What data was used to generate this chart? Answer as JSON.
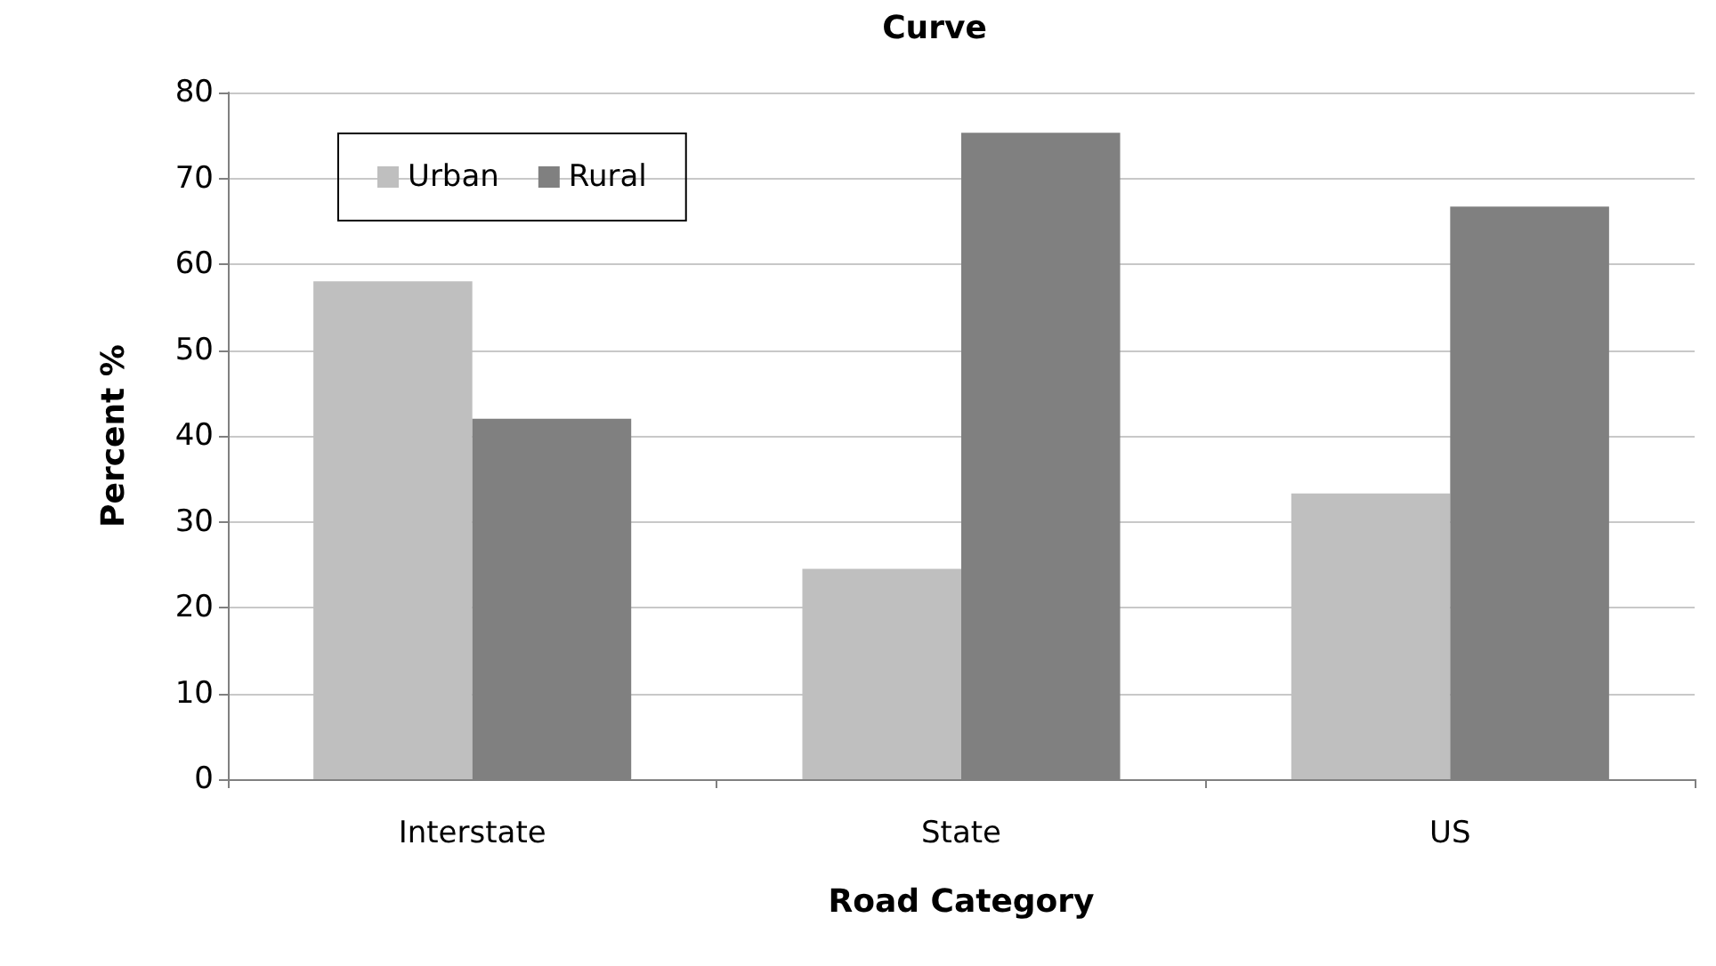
{
  "chart_data": {
    "type": "bar",
    "title": "Curve",
    "xlabel": "Road Category",
    "ylabel": "Percent %",
    "categories": [
      "Interstate",
      "State",
      "US"
    ],
    "series": [
      {
        "name": "Urban",
        "color": "#bfbfbf",
        "values": [
          58,
          24.5,
          33.3
        ]
      },
      {
        "name": "Rural",
        "color": "#808080",
        "values": [
          42,
          75.3,
          66.7
        ]
      }
    ],
    "ylim": [
      0,
      80
    ],
    "yticks": [
      0,
      10,
      20,
      30,
      40,
      50,
      60,
      70,
      80
    ],
    "grid": "y",
    "legend": "top left"
  }
}
